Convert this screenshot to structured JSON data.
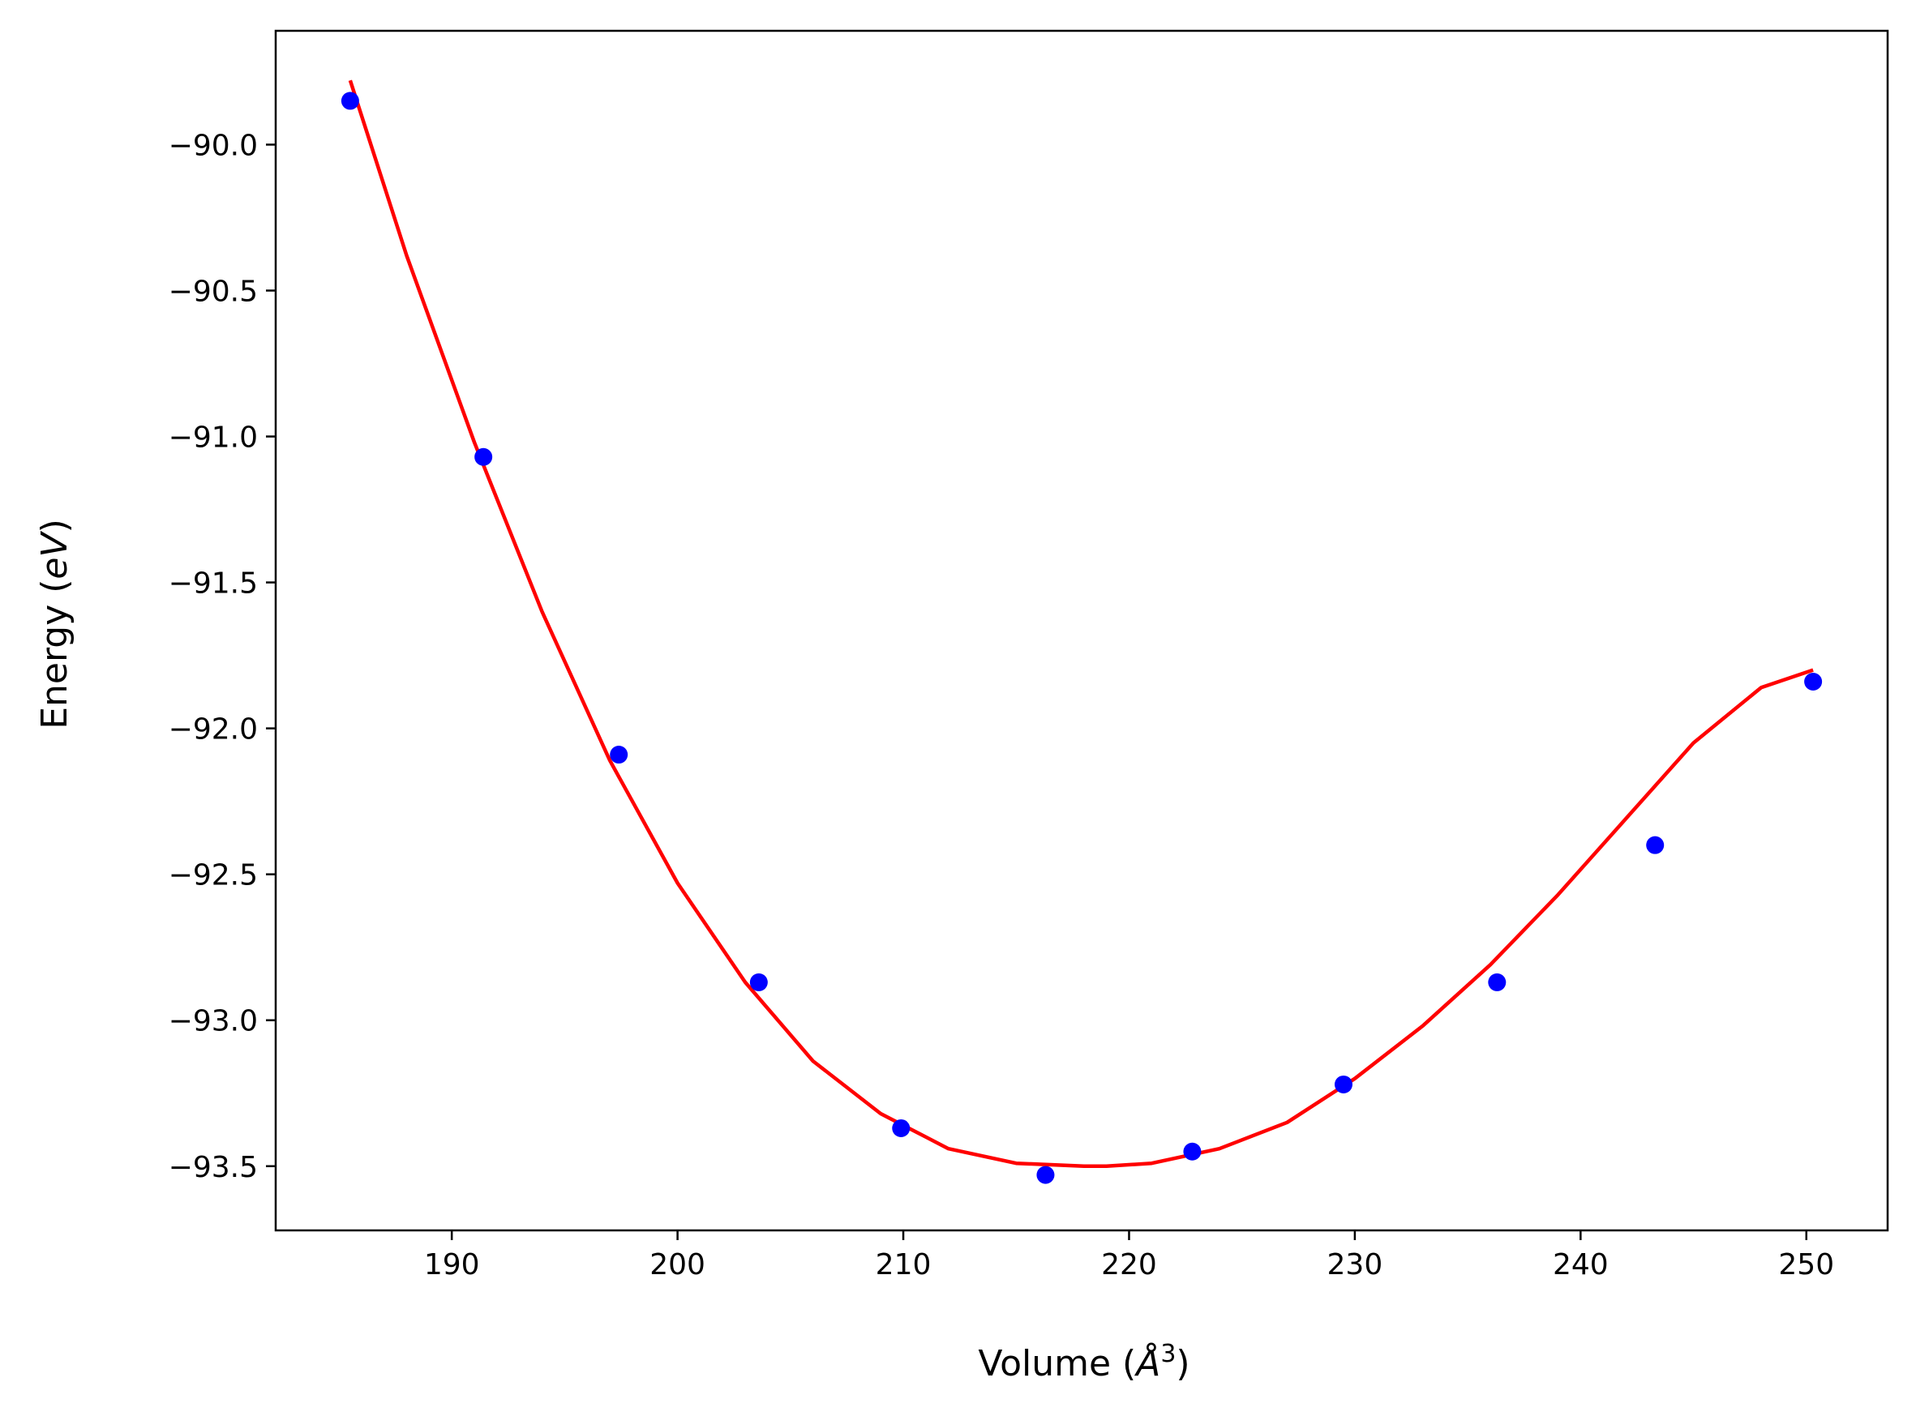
{
  "chart_data": {
    "type": "scatter",
    "title": "",
    "xlabel": "Volume (",
    "xlabel_symbol": "Å",
    "xlabel_exp": "3",
    "xlabel_close": ")",
    "ylabel": "Energy (",
    "ylabel_unit": "eV",
    "ylabel_close": ")",
    "xlim": [
      182.2,
      253.6
    ],
    "ylim": [
      -93.72,
      -89.61
    ],
    "xticks": [
      190,
      200,
      210,
      220,
      230,
      240,
      250
    ],
    "xtick_labels": [
      "190",
      "200",
      "210",
      "220",
      "230",
      "240",
      "250"
    ],
    "yticks": [
      -90.0,
      -90.5,
      -91.0,
      -91.5,
      -92.0,
      -92.5,
      -93.0,
      -93.5
    ],
    "ytick_labels": [
      "−90.0",
      "−90.5",
      "−91.0",
      "−91.5",
      "−92.0",
      "−92.5",
      "−93.0",
      "−93.5"
    ],
    "grid": false,
    "series": [
      {
        "kind": "points",
        "color": "#0000ff",
        "x": [
          185.5,
          191.4,
          197.4,
          203.6,
          209.9,
          216.3,
          222.8,
          229.5,
          236.3,
          243.3,
          250.3
        ],
        "y": [
          -89.85,
          -91.07,
          -92.09,
          -92.87,
          -93.37,
          -93.53,
          -93.45,
          -93.22,
          -92.87,
          -92.4,
          -91.84
        ]
      },
      {
        "kind": "fit-curve",
        "color": "#ff0000",
        "x": [
          185.5,
          188,
          191,
          194,
          197,
          200,
          203,
          206,
          209,
          212,
          215,
          218,
          219,
          221,
          224,
          227,
          230,
          233,
          236,
          239,
          242,
          245,
          248,
          250.3
        ],
        "y": [
          -89.78,
          -90.38,
          -91.02,
          -91.6,
          -92.11,
          -92.53,
          -92.87,
          -93.14,
          -93.32,
          -93.44,
          -93.49,
          -93.5,
          -93.5,
          -93.49,
          -93.44,
          -93.35,
          -93.2,
          -93.02,
          -92.81,
          -92.57,
          -92.31,
          -92.05,
          -91.86,
          -91.8
        ]
      }
    ]
  }
}
